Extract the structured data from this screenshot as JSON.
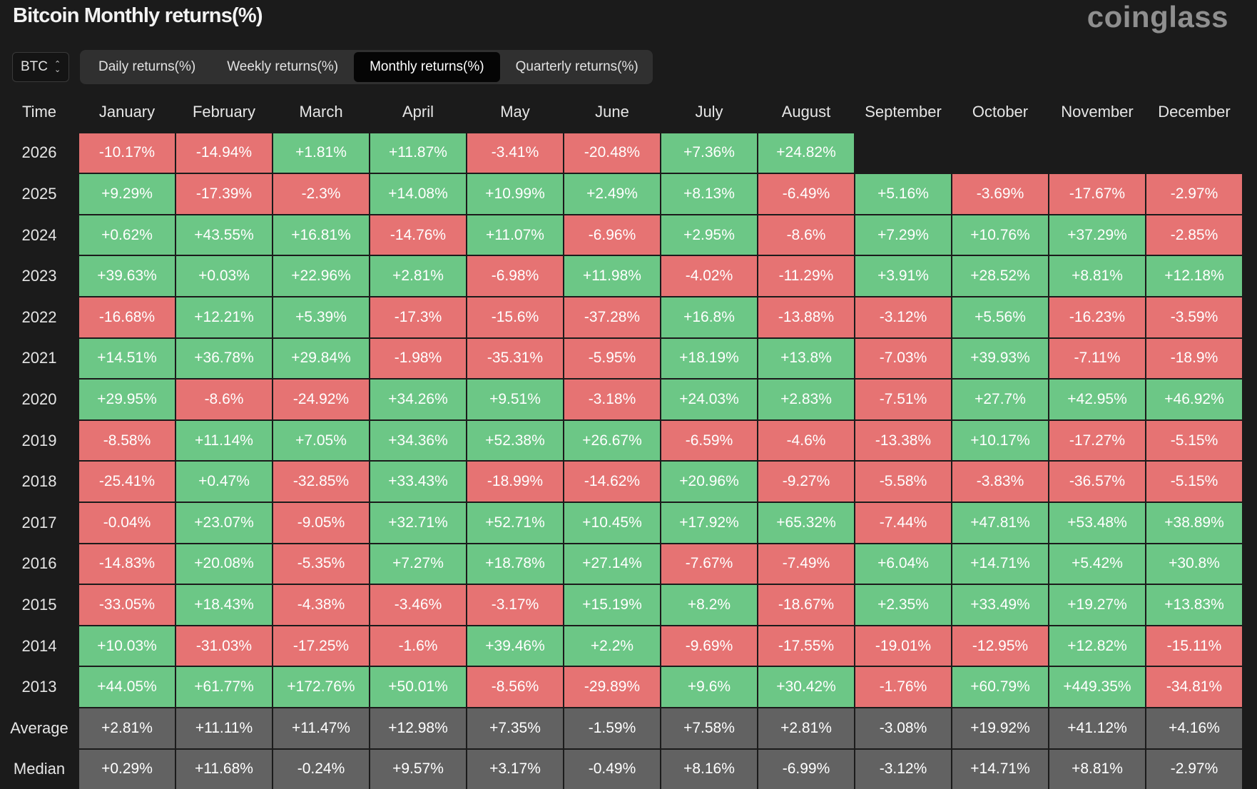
{
  "header": {
    "title": "Bitcoin Monthly returns(%)",
    "brand": "coinglass"
  },
  "selector": {
    "value": "BTC"
  },
  "tabs": [
    {
      "label": "Daily returns(%)",
      "active": false
    },
    {
      "label": "Weekly returns(%)",
      "active": false
    },
    {
      "label": "Monthly returns(%)",
      "active": true
    },
    {
      "label": "Quarterly returns(%)",
      "active": false
    }
  ],
  "colors": {
    "positive": "#6cc786",
    "negative": "#e67373",
    "summary": "#626262"
  },
  "table": {
    "columns": [
      "Time",
      "January",
      "February",
      "March",
      "April",
      "May",
      "June",
      "July",
      "August",
      "September",
      "October",
      "November",
      "December"
    ],
    "rows": [
      {
        "label": "2026",
        "values": [
          "-10.17%",
          "-14.94%",
          "+1.81%",
          "+11.87%",
          "-3.41%",
          "-20.48%",
          "+7.36%",
          "+24.82%",
          "",
          "",
          "",
          ""
        ]
      },
      {
        "label": "2025",
        "values": [
          "+9.29%",
          "-17.39%",
          "-2.3%",
          "+14.08%",
          "+10.99%",
          "+2.49%",
          "+8.13%",
          "-6.49%",
          "+5.16%",
          "-3.69%",
          "-17.67%",
          "-2.97%"
        ]
      },
      {
        "label": "2024",
        "values": [
          "+0.62%",
          "+43.55%",
          "+16.81%",
          "-14.76%",
          "+11.07%",
          "-6.96%",
          "+2.95%",
          "-8.6%",
          "+7.29%",
          "+10.76%",
          "+37.29%",
          "-2.85%"
        ]
      },
      {
        "label": "2023",
        "values": [
          "+39.63%",
          "+0.03%",
          "+22.96%",
          "+2.81%",
          "-6.98%",
          "+11.98%",
          "-4.02%",
          "-11.29%",
          "+3.91%",
          "+28.52%",
          "+8.81%",
          "+12.18%"
        ]
      },
      {
        "label": "2022",
        "values": [
          "-16.68%",
          "+12.21%",
          "+5.39%",
          "-17.3%",
          "-15.6%",
          "-37.28%",
          "+16.8%",
          "-13.88%",
          "-3.12%",
          "+5.56%",
          "-16.23%",
          "-3.59%"
        ]
      },
      {
        "label": "2021",
        "values": [
          "+14.51%",
          "+36.78%",
          "+29.84%",
          "-1.98%",
          "-35.31%",
          "-5.95%",
          "+18.19%",
          "+13.8%",
          "-7.03%",
          "+39.93%",
          "-7.11%",
          "-18.9%"
        ]
      },
      {
        "label": "2020",
        "values": [
          "+29.95%",
          "-8.6%",
          "-24.92%",
          "+34.26%",
          "+9.51%",
          "-3.18%",
          "+24.03%",
          "+2.83%",
          "-7.51%",
          "+27.7%",
          "+42.95%",
          "+46.92%"
        ]
      },
      {
        "label": "2019",
        "values": [
          "-8.58%",
          "+11.14%",
          "+7.05%",
          "+34.36%",
          "+52.38%",
          "+26.67%",
          "-6.59%",
          "-4.6%",
          "-13.38%",
          "+10.17%",
          "-17.27%",
          "-5.15%"
        ]
      },
      {
        "label": "2018",
        "values": [
          "-25.41%",
          "+0.47%",
          "-32.85%",
          "+33.43%",
          "-18.99%",
          "-14.62%",
          "+20.96%",
          "-9.27%",
          "-5.58%",
          "-3.83%",
          "-36.57%",
          "-5.15%"
        ]
      },
      {
        "label": "2017",
        "values": [
          "-0.04%",
          "+23.07%",
          "-9.05%",
          "+32.71%",
          "+52.71%",
          "+10.45%",
          "+17.92%",
          "+65.32%",
          "-7.44%",
          "+47.81%",
          "+53.48%",
          "+38.89%"
        ]
      },
      {
        "label": "2016",
        "values": [
          "-14.83%",
          "+20.08%",
          "-5.35%",
          "+7.27%",
          "+18.78%",
          "+27.14%",
          "-7.67%",
          "-7.49%",
          "+6.04%",
          "+14.71%",
          "+5.42%",
          "+30.8%"
        ]
      },
      {
        "label": "2015",
        "values": [
          "-33.05%",
          "+18.43%",
          "-4.38%",
          "-3.46%",
          "-3.17%",
          "+15.19%",
          "+8.2%",
          "-18.67%",
          "+2.35%",
          "+33.49%",
          "+19.27%",
          "+13.83%"
        ]
      },
      {
        "label": "2014",
        "values": [
          "+10.03%",
          "-31.03%",
          "-17.25%",
          "-1.6%",
          "+39.46%",
          "+2.2%",
          "-9.69%",
          "-17.55%",
          "-19.01%",
          "-12.95%",
          "+12.82%",
          "-15.11%"
        ]
      },
      {
        "label": "2013",
        "values": [
          "+44.05%",
          "+61.77%",
          "+172.76%",
          "+50.01%",
          "-8.56%",
          "-29.89%",
          "+9.6%",
          "+30.42%",
          "-1.76%",
          "+60.79%",
          "+449.35%",
          "-34.81%"
        ]
      }
    ],
    "summary": [
      {
        "label": "Average",
        "values": [
          "+2.81%",
          "+11.11%",
          "+11.47%",
          "+12.98%",
          "+7.35%",
          "-1.59%",
          "+7.58%",
          "+2.81%",
          "-3.08%",
          "+19.92%",
          "+41.12%",
          "+4.16%"
        ]
      },
      {
        "label": "Median",
        "values": [
          "+0.29%",
          "+11.68%",
          "-0.24%",
          "+9.57%",
          "+3.17%",
          "-0.49%",
          "+8.16%",
          "-6.99%",
          "-3.12%",
          "+14.71%",
          "+8.81%",
          "-2.97%"
        ]
      }
    ]
  }
}
